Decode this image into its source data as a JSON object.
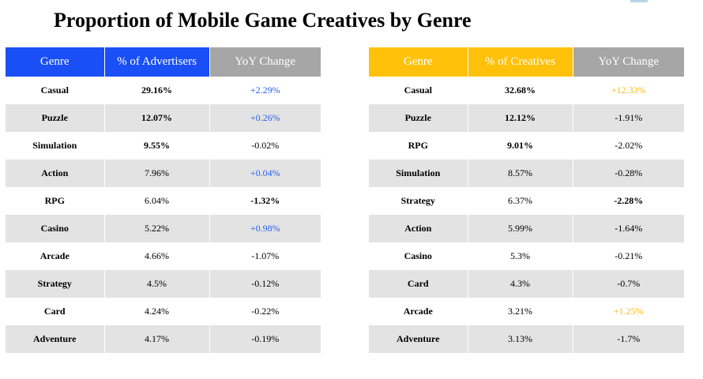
{
  "title": "Proportion of Mobile Game Creatives by Genre",
  "colors": {
    "left_accent": "#1a4ff5",
    "right_accent": "#ffc10a",
    "header_gray": "#a6a6a6",
    "row_stripe": "#e3e3e3",
    "positive_left": "#2a5ff2",
    "positive_right": "#f5bb14"
  },
  "left_table": {
    "headers": [
      "Genre",
      "% of Advertisers",
      "YoY Change"
    ],
    "rows": [
      {
        "genre": "Casual",
        "share": "29.16%",
        "yoy": "+2.29%"
      },
      {
        "genre": "Puzzle",
        "share": "12.07%",
        "yoy": "+0.26%"
      },
      {
        "genre": "Simulation",
        "share": "9.55%",
        "yoy": "-0.02%"
      },
      {
        "genre": "Action",
        "share": "7.96%",
        "yoy": "+0.04%"
      },
      {
        "genre": "RPG",
        "share": "6.04%",
        "yoy": "-1.32%"
      },
      {
        "genre": "Casino",
        "share": "5.22%",
        "yoy": "+0.98%"
      },
      {
        "genre": "Arcade",
        "share": "4.66%",
        "yoy": "-1.07%"
      },
      {
        "genre": "Strategy",
        "share": "4.5%",
        "yoy": "-0.12%"
      },
      {
        "genre": "Card",
        "share": "4.24%",
        "yoy": "-0.22%"
      },
      {
        "genre": "Adventure",
        "share": "4.17%",
        "yoy": "-0.19%"
      }
    ]
  },
  "right_table": {
    "headers": [
      "Genre",
      "% of Creatives",
      "YoY Change"
    ],
    "rows": [
      {
        "genre": "Casual",
        "share": "32.68%",
        "yoy": "+12.33%"
      },
      {
        "genre": "Puzzle",
        "share": "12.12%",
        "yoy": "-1.91%"
      },
      {
        "genre": "RPG",
        "share": "9.01%",
        "yoy": "-2.02%"
      },
      {
        "genre": "Simulation",
        "share": "8.57%",
        "yoy": "-0.28%"
      },
      {
        "genre": "Strategy",
        "share": "6.37%",
        "yoy": "-2.28%"
      },
      {
        "genre": "Action",
        "share": "5.99%",
        "yoy": "-1.64%"
      },
      {
        "genre": "Casino",
        "share": "5.3%",
        "yoy": "-0.21%"
      },
      {
        "genre": "Card",
        "share": "4.3%",
        "yoy": "-0.7%"
      },
      {
        "genre": "Arcade",
        "share": "3.21%",
        "yoy": "+1.25%"
      },
      {
        "genre": "Adventure",
        "share": "3.13%",
        "yoy": "-1.7%"
      }
    ]
  }
}
